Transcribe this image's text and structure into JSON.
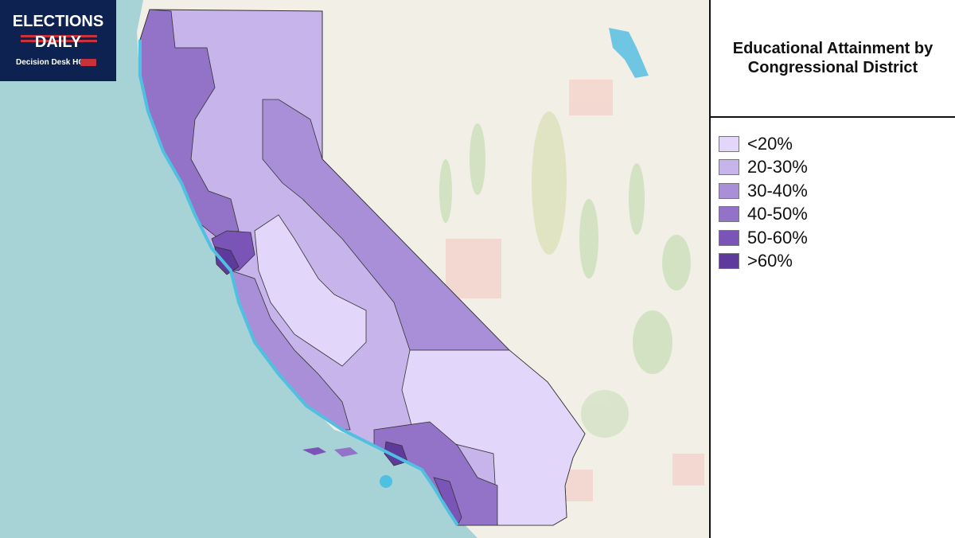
{
  "title": "Educational Attainment by Congressional District",
  "logo": {
    "line1": "ELECTIONS",
    "line2": "DAILY",
    "line3": "Decision Desk HQ",
    "icon": "star-icon"
  },
  "legend": [
    {
      "label": "<20%",
      "color": "#e2d7fb"
    },
    {
      "label": "20-30%",
      "color": "#c6b4ea"
    },
    {
      "label": "30-40%",
      "color": "#a88fd8"
    },
    {
      "label": "40-50%",
      "color": "#9273c7"
    },
    {
      "label": "50-60%",
      "color": "#7a54b6"
    },
    {
      "label": ">60%",
      "color": "#5d3a9b"
    }
  ],
  "colors": {
    "ocean": "#a8d3d6",
    "land": "#f1efe6",
    "coast": "#4fc0e0",
    "border": "#333333"
  }
}
